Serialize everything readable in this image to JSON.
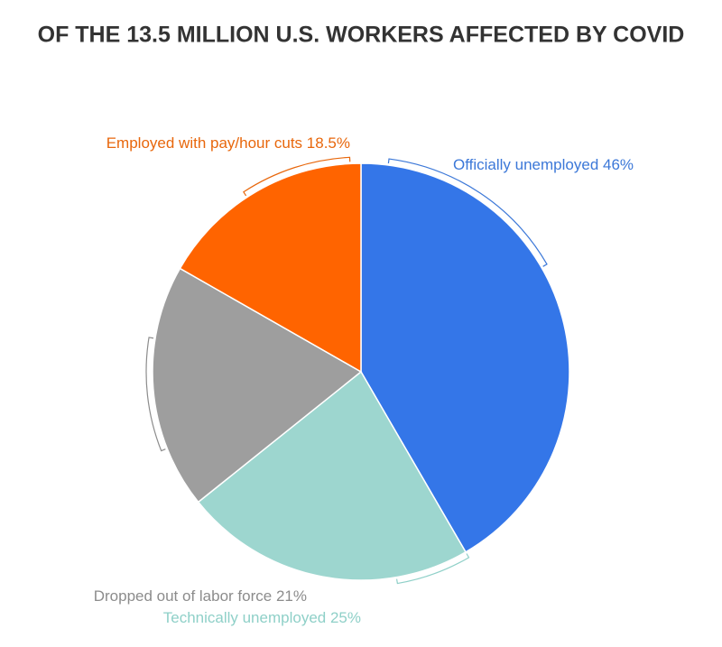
{
  "chart_data": {
    "type": "pie",
    "title": "OF THE 13.5 MILLION U.S. WORKERS AFFECTED BY COVID",
    "categories": [
      "Officially unemployed",
      "Technically unemployed",
      "Dropped out of labor force",
      "Employed with pay/hour cuts"
    ],
    "values": [
      46,
      25,
      21,
      18.5
    ],
    "value_labels": [
      "46%",
      "25%",
      "21%",
      "18.5%"
    ],
    "colors": [
      "#3476e8",
      "#9dd6cf",
      "#9e9e9e",
      "#ff6400"
    ],
    "label_colors": [
      "#3c78d8",
      "#8fd0c8",
      "#8c8c8c",
      "#e8670c"
    ]
  }
}
